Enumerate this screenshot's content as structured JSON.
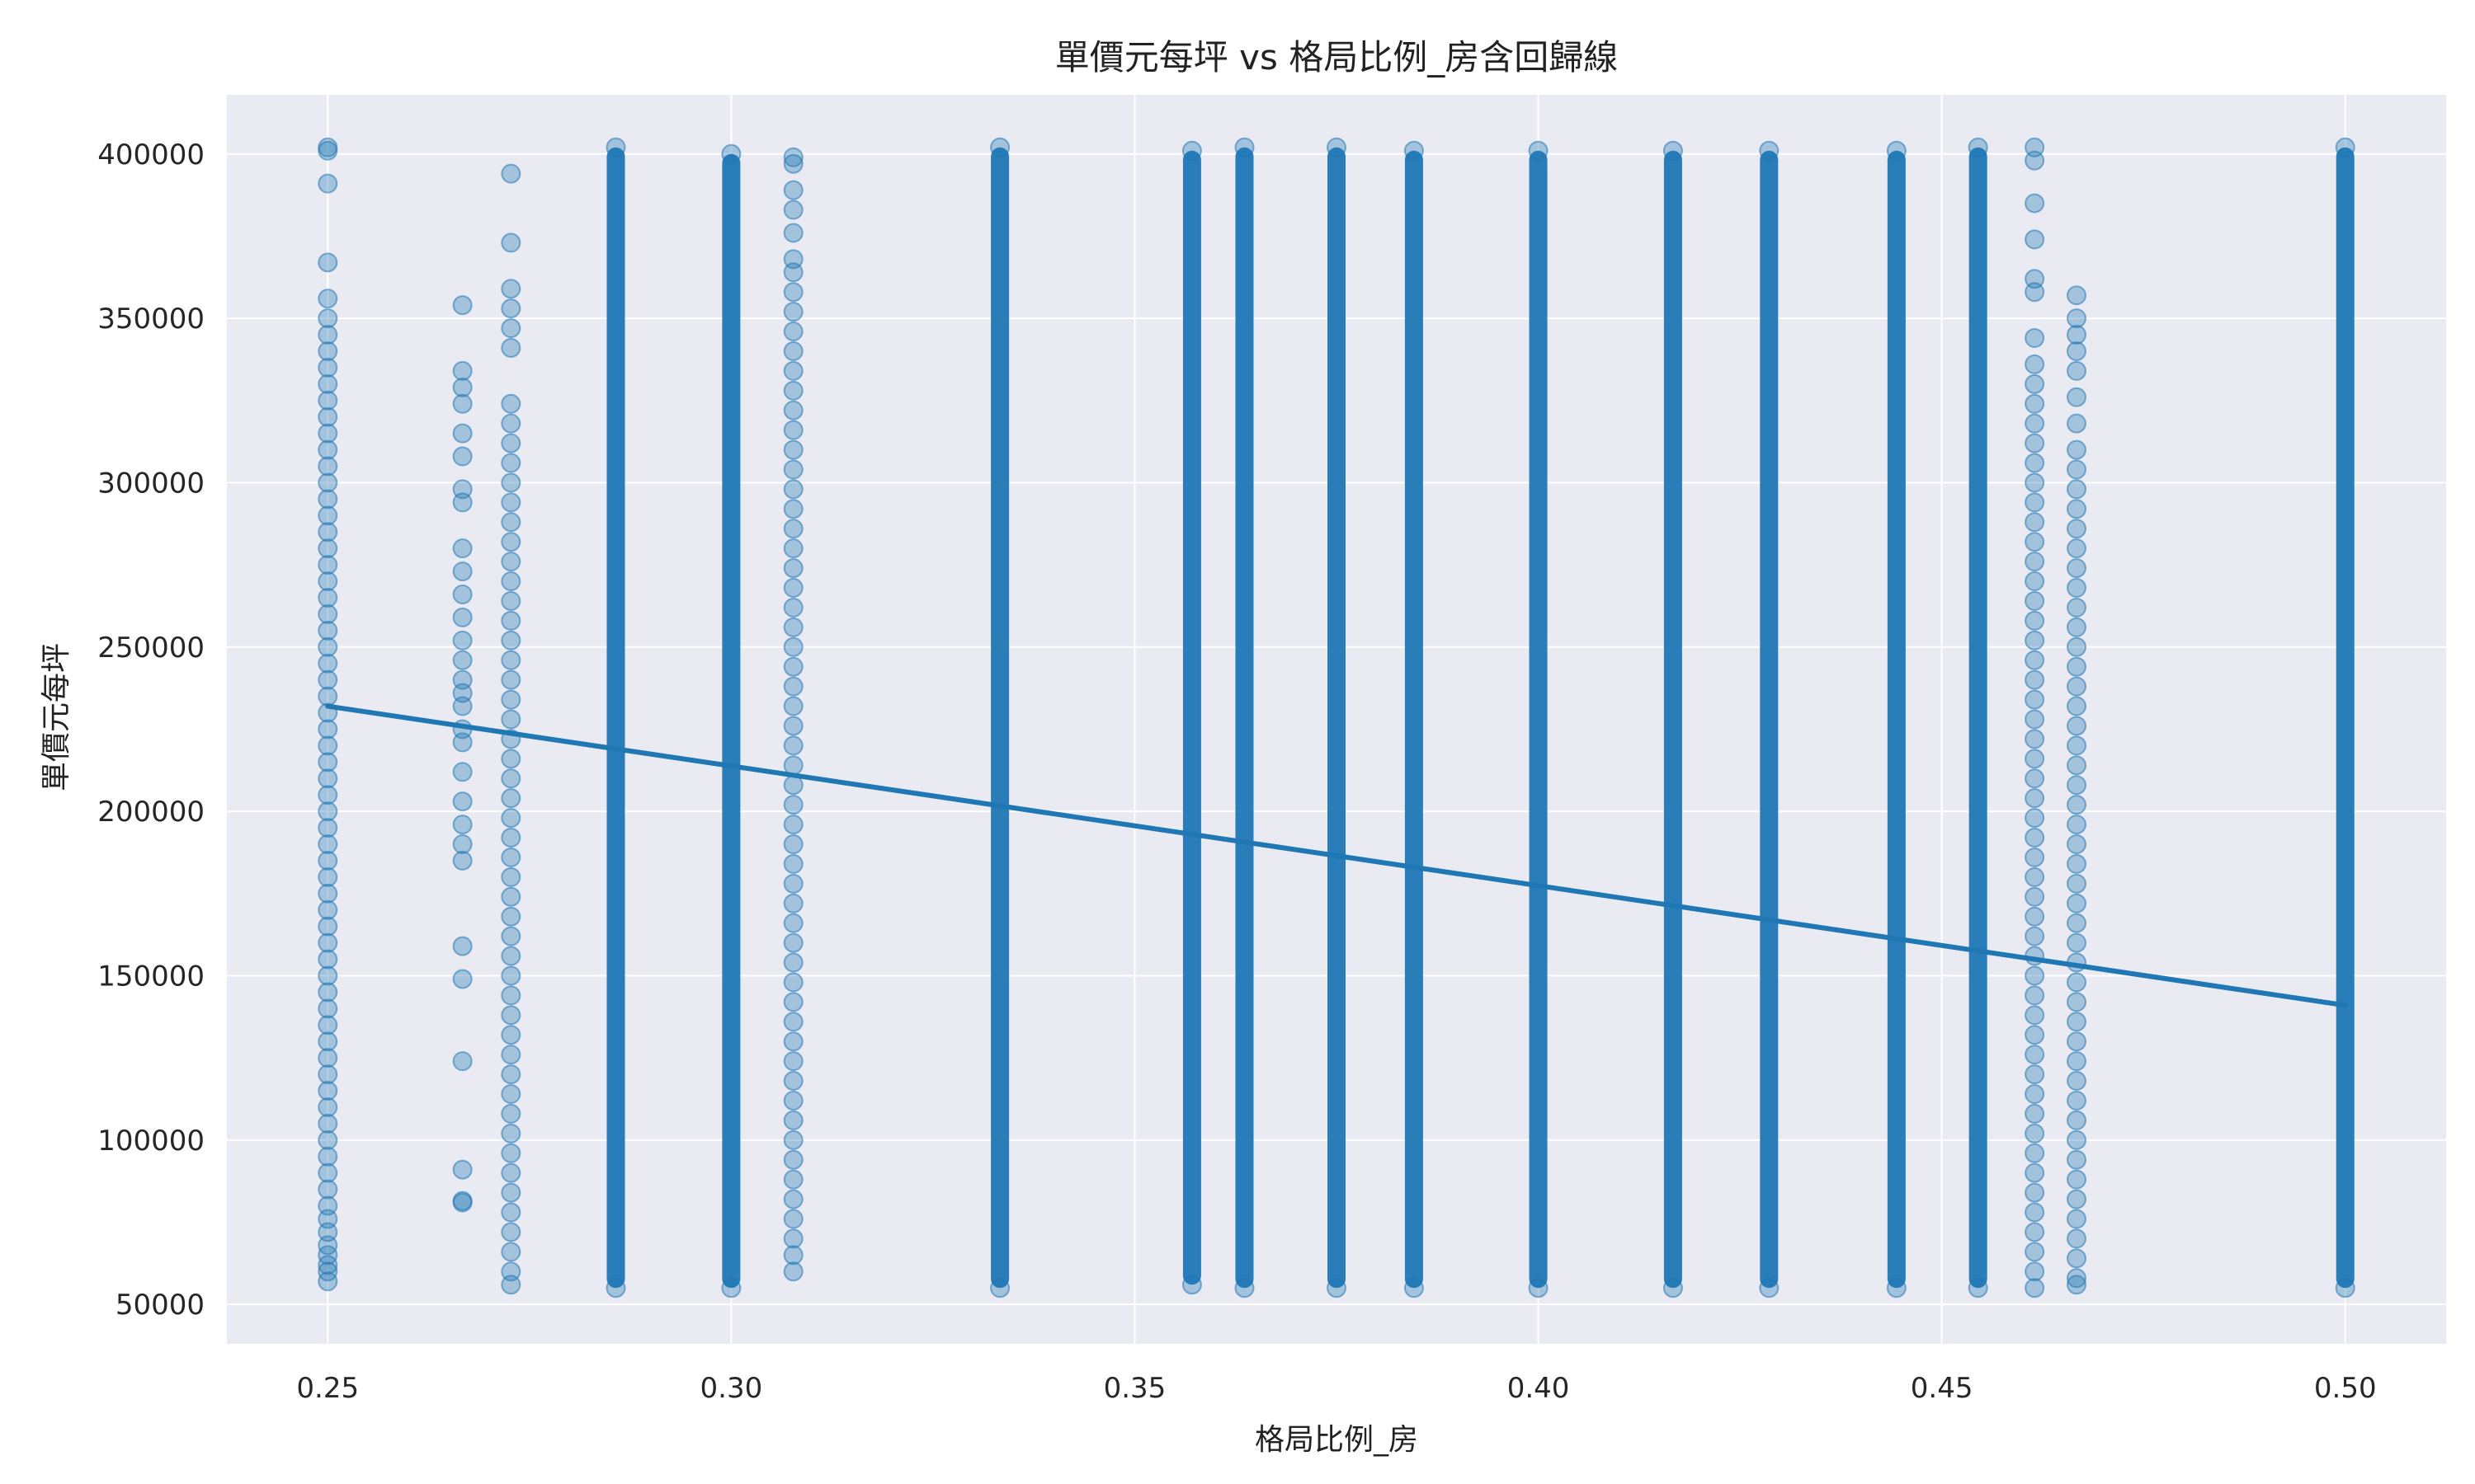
{
  "chart_data": {
    "type": "scatter",
    "title": "單價元每坪 vs 格局比例_房含回歸線",
    "xlabel": "格局比例_房",
    "ylabel": "單價元每坪",
    "xlim": [
      0.2375,
      0.5125
    ],
    "ylim": [
      38000,
      418000
    ],
    "grid": true,
    "legend": "none",
    "x_ticks": [
      0.25,
      0.3,
      0.35,
      0.4,
      0.45,
      0.5
    ],
    "x_tick_labels": [
      "0.25",
      "0.30",
      "0.35",
      "0.40",
      "0.45",
      "0.50"
    ],
    "y_ticks": [
      50000,
      100000,
      150000,
      200000,
      250000,
      300000,
      350000,
      400000
    ],
    "y_tick_labels": [
      "50000",
      "100000",
      "150000",
      "200000",
      "250000",
      "300000",
      "350000",
      "400000"
    ],
    "scatter_groups": [
      {
        "x": 0.25,
        "points": [
          57000,
          60000,
          62000,
          65000,
          68000,
          72000,
          76000,
          80000,
          85000,
          90000,
          95000,
          100000,
          105000,
          110000,
          115000,
          120000,
          125000,
          130000,
          135000,
          140000,
          145000,
          150000,
          155000,
          160000,
          165000,
          170000,
          175000,
          180000,
          185000,
          190000,
          195000,
          200000,
          205000,
          210000,
          215000,
          220000,
          225000,
          230000,
          235000,
          240000,
          245000,
          250000,
          255000,
          260000,
          265000,
          270000,
          275000,
          280000,
          285000,
          290000,
          295000,
          300000,
          305000,
          310000,
          315000,
          320000,
          325000,
          330000,
          335000,
          340000,
          345000,
          350000,
          356000,
          367000,
          391000,
          401000,
          402000
        ]
      },
      {
        "x": 0.2667,
        "points": [
          81000,
          81500,
          91000,
          124000,
          149000,
          159000,
          185000,
          190000,
          196000,
          203000,
          212000,
          221000,
          225000,
          232000,
          236000,
          240000,
          246000,
          252000,
          259000,
          266000,
          273000,
          280000,
          294000,
          298000,
          308000,
          315000,
          324000,
          329000,
          334000,
          354000
        ]
      },
      {
        "x": 0.2727,
        "points": [
          56000,
          60000,
          66000,
          72000,
          78000,
          84000,
          90000,
          96000,
          102000,
          108000,
          114000,
          120000,
          126000,
          132000,
          138000,
          144000,
          150000,
          156000,
          162000,
          168000,
          174000,
          180000,
          186000,
          192000,
          198000,
          204000,
          210000,
          216000,
          222000,
          228000,
          234000,
          240000,
          246000,
          252000,
          258000,
          264000,
          270000,
          276000,
          282000,
          288000,
          294000,
          300000,
          306000,
          312000,
          318000,
          324000,
          341000,
          347000,
          353000,
          359000,
          373000,
          394000
        ]
      },
      {
        "x": 0.2857,
        "min": 55000,
        "max": 402000
      },
      {
        "x": 0.3,
        "min": 55000,
        "max": 400000
      },
      {
        "x": 0.3077,
        "points": [
          60000,
          65000,
          70000,
          76000,
          82000,
          88000,
          94000,
          100000,
          106000,
          112000,
          118000,
          124000,
          130000,
          136000,
          142000,
          148000,
          154000,
          160000,
          166000,
          172000,
          178000,
          184000,
          190000,
          196000,
          202000,
          208000,
          214000,
          220000,
          226000,
          232000,
          238000,
          244000,
          250000,
          256000,
          262000,
          268000,
          274000,
          280000,
          286000,
          292000,
          298000,
          304000,
          310000,
          316000,
          322000,
          328000,
          334000,
          340000,
          346000,
          352000,
          358000,
          364000,
          368000,
          376000,
          383000,
          389000,
          397000,
          399000
        ]
      },
      {
        "x": 0.3333,
        "min": 55000,
        "max": 402000
      },
      {
        "x": 0.3571,
        "min": 56000,
        "max": 401000
      },
      {
        "x": 0.3636,
        "min": 55000,
        "max": 402000
      },
      {
        "x": 0.375,
        "min": 55000,
        "max": 402000
      },
      {
        "x": 0.3846,
        "min": 55000,
        "max": 401000
      },
      {
        "x": 0.4,
        "min": 55000,
        "max": 401000
      },
      {
        "x": 0.4167,
        "min": 55000,
        "max": 401000
      },
      {
        "x": 0.4286,
        "min": 55000,
        "max": 401000
      },
      {
        "x": 0.4444,
        "min": 55000,
        "max": 401000
      },
      {
        "x": 0.4545,
        "min": 55000,
        "max": 402000
      },
      {
        "x": 0.4615,
        "points": [
          55000,
          60000,
          66000,
          72000,
          78000,
          84000,
          90000,
          96000,
          102000,
          108000,
          114000,
          120000,
          126000,
          132000,
          138000,
          144000,
          150000,
          156000,
          162000,
          168000,
          174000,
          180000,
          186000,
          192000,
          198000,
          204000,
          210000,
          216000,
          222000,
          228000,
          234000,
          240000,
          246000,
          252000,
          258000,
          264000,
          270000,
          276000,
          282000,
          288000,
          294000,
          300000,
          306000,
          312000,
          318000,
          324000,
          330000,
          336000,
          344000,
          358000,
          362000,
          374000,
          385000,
          398000,
          402000
        ]
      },
      {
        "x": 0.4667,
        "points": [
          56000,
          58000,
          64000,
          70000,
          76000,
          82000,
          88000,
          94000,
          100000,
          106000,
          112000,
          118000,
          124000,
          130000,
          136000,
          142000,
          148000,
          154000,
          160000,
          166000,
          172000,
          178000,
          184000,
          190000,
          196000,
          202000,
          208000,
          214000,
          220000,
          226000,
          232000,
          238000,
          244000,
          250000,
          256000,
          262000,
          268000,
          274000,
          280000,
          286000,
          292000,
          298000,
          304000,
          310000,
          318000,
          326000,
          334000,
          340000,
          345000,
          350000,
          357000
        ]
      },
      {
        "x": 0.5,
        "min": 55000,
        "max": 402000
      }
    ],
    "regression_line": {
      "x": [
        0.25,
        0.5
      ],
      "y": [
        232000,
        141000
      ]
    },
    "colors": {
      "points": "#1f77b4",
      "line": "#1f77b4",
      "plot_background": "#eaeaf2",
      "grid": "#ffffff",
      "text": "#222222"
    }
  }
}
